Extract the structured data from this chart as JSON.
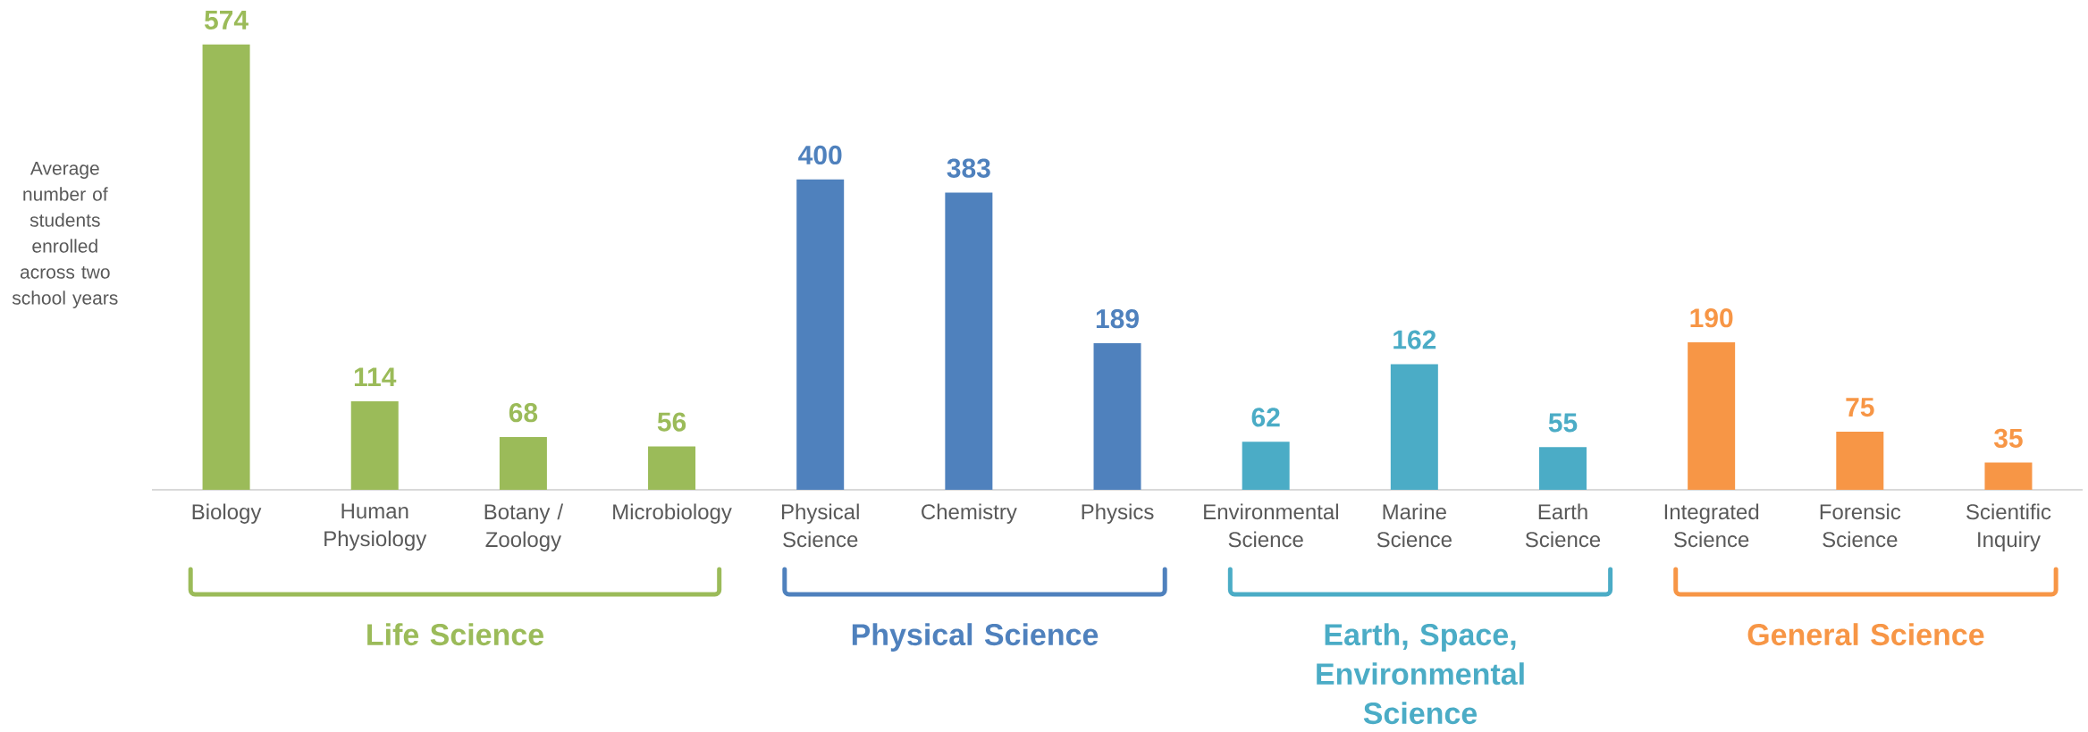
{
  "chart_data": {
    "type": "bar",
    "ylabel": "Average number of students enrolled across two school years",
    "categories": [
      "Biology",
      "Human Physiology",
      "Botany / Zoology",
      "Microbiology",
      "Physical Science",
      "Chemistry",
      "Physics",
      "Environmental Science",
      "Marine Science",
      "Earth Science",
      "Integrated Science",
      "Forensic Science",
      "Scientific Inquiry"
    ],
    "series": [
      {
        "name": "Life Science",
        "color": "#9bbb59",
        "values": [
          574,
          114,
          68,
          56,
          null,
          null,
          null,
          null,
          null,
          null,
          null,
          null,
          null
        ]
      },
      {
        "name": "Physical Science",
        "color": "#4f81bd",
        "values": [
          null,
          null,
          null,
          null,
          400,
          383,
          189,
          null,
          null,
          null,
          null,
          null,
          null
        ]
      },
      {
        "name": "Earth, Space, Environmental Science",
        "color": "#4bacc6",
        "values": [
          null,
          null,
          null,
          null,
          null,
          null,
          null,
          62,
          162,
          55,
          null,
          null,
          null
        ]
      },
      {
        "name": "General Science",
        "color": "#f79646",
        "values": [
          null,
          null,
          null,
          null,
          null,
          null,
          null,
          null,
          null,
          null,
          190,
          75,
          35
        ]
      }
    ],
    "data_labels": true,
    "tick_labels": "x"
  }
}
